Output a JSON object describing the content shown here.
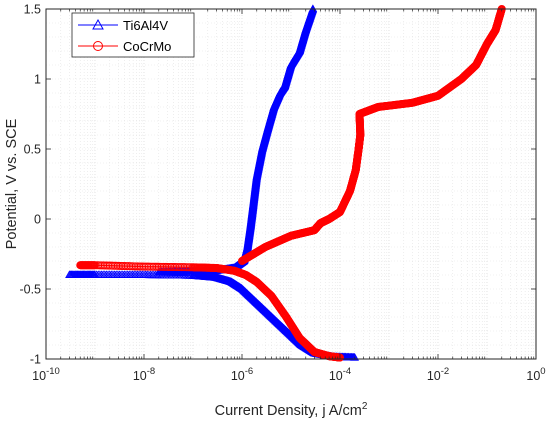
{
  "chart_data": {
    "type": "line",
    "xlabel": "Current Density, j A/cm",
    "xlabel_sup": "2",
    "ylabel": "Potential, V vs. SCE",
    "x_scale": "log",
    "xlim": [
      1e-10,
      1
    ],
    "ylim": [
      -1,
      1.5
    ],
    "x_ticks": [
      {
        "value": 1e-10,
        "base": "10",
        "exp": "-10"
      },
      {
        "value": 1e-08,
        "base": "10",
        "exp": "-8"
      },
      {
        "value": 1e-06,
        "base": "10",
        "exp": "-6"
      },
      {
        "value": 0.0001,
        "base": "10",
        "exp": "-4"
      },
      {
        "value": 0.01,
        "base": "10",
        "exp": "-2"
      },
      {
        "value": 1,
        "base": "10",
        "exp": "0"
      }
    ],
    "y_ticks": [
      "-1",
      "-0.5",
      "0",
      "0.5",
      "1",
      "1.5"
    ],
    "y_tick_values": [
      -1,
      -0.5,
      0,
      0.5,
      1,
      1.5
    ],
    "grid": "minor dotted",
    "legend_position": "top-left",
    "series": [
      {
        "name": "Ti6Al4V",
        "color": "#0000ff",
        "marker": "triangle",
        "anodic": [
          [
            2e-08,
            -0.38
          ],
          [
            1e-07,
            -0.375
          ],
          [
            3e-07,
            -0.37
          ],
          [
            7e-07,
            -0.35
          ],
          [
            1.1e-06,
            -0.3
          ],
          [
            1.3e-06,
            -0.2
          ],
          [
            1.5e-06,
            -0.05
          ],
          [
            1.7e-06,
            0.1
          ],
          [
            2e-06,
            0.3
          ],
          [
            2.6e-06,
            0.5
          ],
          [
            3.4e-06,
            0.65
          ],
          [
            4.5e-06,
            0.8
          ],
          [
            6e-06,
            0.9
          ],
          [
            7.5e-06,
            0.95
          ],
          [
            1e-05,
            1.1
          ],
          [
            1.5e-05,
            1.2
          ],
          [
            2e-05,
            1.35
          ],
          [
            2.8e-05,
            1.5
          ]
        ],
        "cathodic": [
          [
            3e-10,
            -0.4
          ],
          [
            1e-09,
            -0.4
          ],
          [
            1e-08,
            -0.4
          ],
          [
            1e-07,
            -0.405
          ],
          [
            3e-07,
            -0.42
          ],
          [
            6e-07,
            -0.45
          ],
          [
            1e-06,
            -0.5
          ],
          [
            2e-06,
            -0.6
          ],
          [
            4e-06,
            -0.7
          ],
          [
            8e-06,
            -0.8
          ],
          [
            1.6e-05,
            -0.9
          ],
          [
            3e-05,
            -0.96
          ],
          [
            7e-05,
            -0.985
          ],
          [
            0.0002,
            -0.99
          ]
        ]
      },
      {
        "name": "CoCrMo",
        "color": "#ff0000",
        "marker": "circle",
        "anodic": [
          [
            1e-06,
            -0.3
          ],
          [
            3e-06,
            -0.2
          ],
          [
            1e-05,
            -0.12
          ],
          [
            3e-05,
            -0.08
          ],
          [
            4e-05,
            -0.03
          ],
          [
            6e-05,
            0.0
          ],
          [
            0.0001,
            0.05
          ],
          [
            0.00016,
            0.2
          ],
          [
            0.00021,
            0.35
          ],
          [
            0.00024,
            0.5
          ],
          [
            0.00026,
            0.6
          ],
          [
            0.00025,
            0.75
          ],
          [
            0.0006,
            0.8
          ],
          [
            0.003,
            0.83
          ],
          [
            0.01,
            0.88
          ],
          [
            0.03,
            1.0
          ],
          [
            0.06,
            1.1
          ],
          [
            0.1,
            1.25
          ],
          [
            0.15,
            1.35
          ],
          [
            0.2,
            1.5
          ]
        ],
        "cathodic": [
          [
            5e-10,
            -0.33
          ],
          [
            1e-09,
            -0.33
          ],
          [
            1e-08,
            -0.34
          ],
          [
            1e-07,
            -0.345
          ],
          [
            3e-07,
            -0.35
          ],
          [
            7e-07,
            -0.37
          ],
          [
            1.2e-06,
            -0.4
          ],
          [
            2e-06,
            -0.45
          ],
          [
            4e-06,
            -0.55
          ],
          [
            8e-06,
            -0.7
          ],
          [
            1.5e-05,
            -0.85
          ],
          [
            3e-05,
            -0.95
          ],
          [
            6e-05,
            -0.98
          ],
          [
            0.0001,
            -0.99
          ]
        ]
      }
    ]
  }
}
